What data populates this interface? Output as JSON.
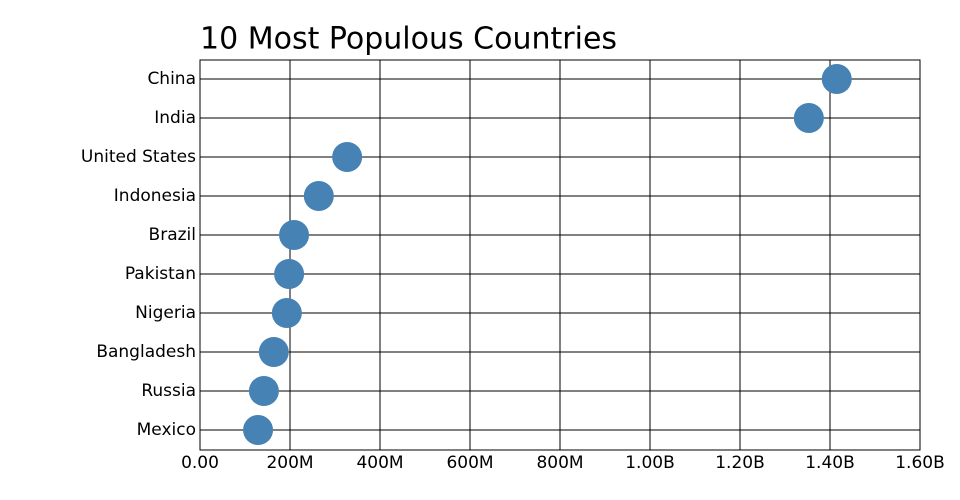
{
  "chart_data": {
    "type": "dot",
    "title": "10 Most Populous Countries",
    "categories": [
      "China",
      "India",
      "United States",
      "Indonesia",
      "Brazil",
      "Pakistan",
      "Nigeria",
      "Bangladesh",
      "Russia",
      "Mexico"
    ],
    "values": [
      1415000000,
      1353000000,
      327000000,
      264000000,
      209000000,
      198000000,
      193000000,
      164000000,
      142000000,
      129000000
    ],
    "color": "#4682b4",
    "xlim": [
      0,
      1600000000
    ],
    "xticks": [
      {
        "value": 0,
        "label": "0.00"
      },
      {
        "value": 200000000,
        "label": "200M"
      },
      {
        "value": 400000000,
        "label": "400M"
      },
      {
        "value": 600000000,
        "label": "600M"
      },
      {
        "value": 800000000,
        "label": "800M"
      },
      {
        "value": 1000000000,
        "label": "1.00B"
      },
      {
        "value": 1200000000,
        "label": "1.20B"
      },
      {
        "value": 1400000000,
        "label": "1.40B"
      },
      {
        "value": 1600000000,
        "label": "1.60B"
      }
    ],
    "grid": true
  }
}
